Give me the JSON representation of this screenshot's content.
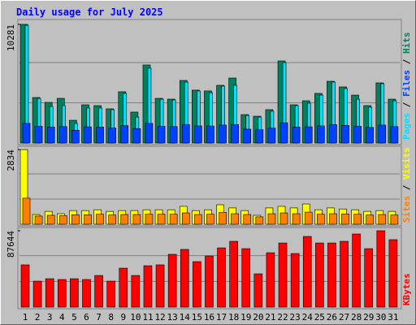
{
  "title": "Daily usage for July 2025",
  "chart_data": [
    {
      "type": "bar",
      "series": [
        {
          "name": "Hits",
          "color": "#00805c",
          "values": [
            10281,
            3942,
            3520,
            3870,
            1970,
            3310,
            3240,
            2960,
            4440,
            2680,
            6760,
            3870,
            3800,
            5420,
            4580,
            4510,
            5000,
            5630,
            2460,
            2320,
            2890,
            7110,
            3310,
            3660,
            4300,
            5350,
            4860,
            4150,
            3240,
            5210,
            3800
          ]
        },
        {
          "name": "Files",
          "color": "#0040ff",
          "values": [
            1700,
            1450,
            1380,
            1420,
            1100,
            1400,
            1380,
            1300,
            1500,
            1250,
            1700,
            1450,
            1420,
            1600,
            1480,
            1470,
            1550,
            1600,
            1200,
            1150,
            1300,
            1750,
            1380,
            1400,
            1480,
            1600,
            1520,
            1450,
            1350,
            1550,
            1420
          ]
        },
        {
          "name": "Pages",
          "color": "#00e0ff",
          "values": [
            10200,
            3870,
            3170,
            3240,
            1690,
            3030,
            3030,
            2890,
            4300,
            2250,
            6480,
            3800,
            3730,
            5280,
            4510,
            4360,
            4930,
            5000,
            2390,
            2250,
            2750,
            6970,
            3240,
            3450,
            4150,
            5280,
            4720,
            3800,
            3100,
            5140,
            3660
          ]
        }
      ],
      "ylim": [
        0,
        10560
      ],
      "yticks": [
        10281
      ]
    },
    {
      "type": "bar",
      "series": [
        {
          "name": "Visits",
          "color": "#ffff00",
          "values": [
            2834,
            370,
            490,
            400,
            520,
            520,
            550,
            490,
            520,
            520,
            550,
            550,
            550,
            680,
            520,
            550,
            740,
            620,
            520,
            340,
            620,
            680,
            620,
            770,
            550,
            620,
            580,
            550,
            490,
            520,
            490
          ]
        },
        {
          "name": "Sites",
          "color": "#ff8000",
          "values": [
            990,
            310,
            340,
            330,
            360,
            360,
            380,
            350,
            370,
            370,
            380,
            380,
            380,
            430,
            370,
            380,
            450,
            400,
            370,
            280,
            400,
            430,
            400,
            460,
            380,
            400,
            390,
            380,
            350,
            370,
            350
          ]
        }
      ],
      "ylim": [
        0,
        2900
      ],
      "yticks": [
        2834
      ]
    },
    {
      "type": "bar",
      "categories": [
        "1",
        "2",
        "3",
        "4",
        "5",
        "6",
        "7",
        "8",
        "9",
        "10",
        "11",
        "12",
        "13",
        "14",
        "15",
        "16",
        "17",
        "18",
        "19",
        "20",
        "21",
        "22",
        "23",
        "24",
        "25",
        "26",
        "27",
        "28",
        "29",
        "30",
        "31"
      ],
      "category_colors": [
        "#000",
        "#000",
        "#000",
        "#000",
        "#00805c",
        "#00805c",
        "#000",
        "#000",
        "#000",
        "#000",
        "#000",
        "#00805c",
        "#00805c",
        "#000",
        "#000",
        "#000",
        "#000",
        "#000",
        "#00805c",
        "#00805c",
        "#000",
        "#000",
        "#000",
        "#000",
        "#000",
        "#00805c",
        "#00805c",
        "#000",
        "#000",
        "#000",
        "#000"
      ],
      "series": [
        {
          "name": "KBytes",
          "color": "#ff0000",
          "values": [
            48500,
            29800,
            32600,
            31700,
            32600,
            31700,
            36300,
            29800,
            44700,
            36300,
            47500,
            48500,
            60600,
            66200,
            52200,
            58700,
            68000,
            75500,
            67100,
            38200,
            62400,
            73600,
            61500,
            81100,
            73600,
            73600,
            75500,
            83900,
            67100,
            87644,
            77400
          ]
        }
      ],
      "ylim": [
        0,
        89500
      ],
      "yticks": [
        87644
      ]
    }
  ]
}
